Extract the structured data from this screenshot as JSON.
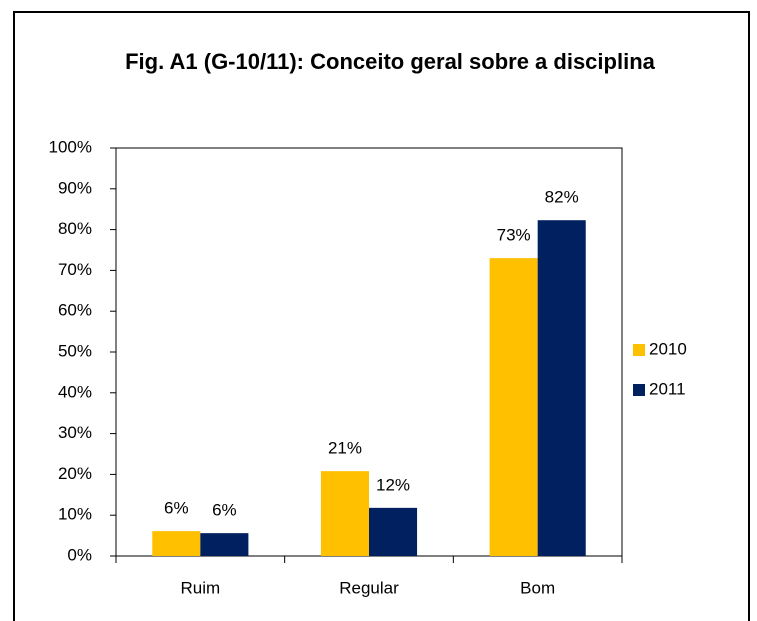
{
  "chart_data": {
    "type": "bar",
    "title": "Fig. A1 (G-10/11): Conceito geral sobre a disciplina",
    "categories": [
      "Ruim",
      "Regular",
      "Bom"
    ],
    "series": [
      {
        "name": "2010",
        "color": "#ffc000",
        "values": [
          6.1,
          20.8,
          73.0
        ],
        "value_labels": [
          "6%",
          "21%",
          "73%"
        ]
      },
      {
        "name": "2011",
        "color": "#002060",
        "values": [
          5.6,
          11.8,
          82.3
        ],
        "value_labels": [
          "6%",
          "12%",
          "82%"
        ]
      }
    ],
    "ylim": [
      0,
      100
    ],
    "yticks": [
      {
        "value": 0,
        "label": "0%"
      },
      {
        "value": 10,
        "label": "10%"
      },
      {
        "value": 20,
        "label": "20%"
      },
      {
        "value": 30,
        "label": "30%"
      },
      {
        "value": 40,
        "label": "40%"
      },
      {
        "value": 50,
        "label": "50%"
      },
      {
        "value": 60,
        "label": "60%"
      },
      {
        "value": 70,
        "label": "70%"
      },
      {
        "value": 80,
        "label": "80%"
      },
      {
        "value": 90,
        "label": "90%"
      },
      {
        "value": 100,
        "label": "100%"
      }
    ],
    "grid": false,
    "legend": "right"
  }
}
